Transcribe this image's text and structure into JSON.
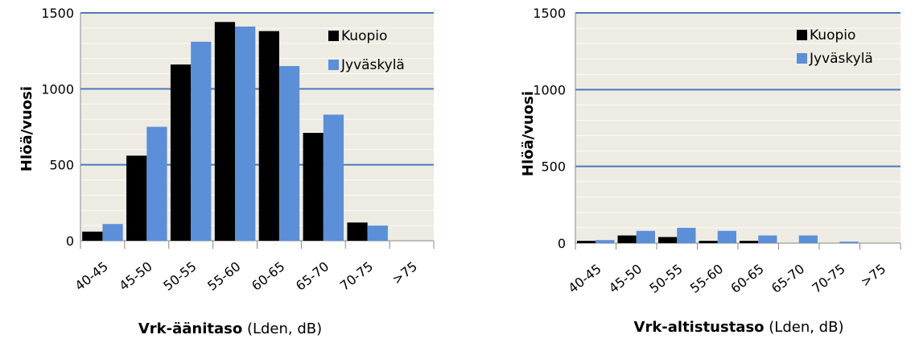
{
  "chart_data": [
    {
      "type": "bar",
      "categories": [
        "40-45",
        "45-50",
        "50-55",
        "55-60",
        "60-65",
        "65-70",
        "70-75",
        ">75"
      ],
      "series": [
        {
          "name": "Kuopio",
          "values": [
            60,
            560,
            1160,
            1440,
            1380,
            710,
            120,
            0
          ]
        },
        {
          "name": "Jyväskylä",
          "values": [
            110,
            750,
            1310,
            1410,
            1150,
            830,
            100,
            0
          ]
        }
      ],
      "ylabel": "Hlöä/vuosi",
      "xlabel_bold": "Vrk-äänitaso",
      "xlabel_rest": " (Lden, dB)",
      "ylim": [
        0,
        1500
      ],
      "yticks": [
        "0",
        "500",
        "1000",
        "1500"
      ],
      "grid": true,
      "legend": "top-right"
    },
    {
      "type": "bar",
      "categories": [
        "40-45",
        "45-50",
        "50-55",
        "55-60",
        "60-65",
        "65-70",
        "70-75",
        ">75"
      ],
      "series": [
        {
          "name": "Kuopio",
          "values": [
            15,
            50,
            40,
            15,
            15,
            0,
            0,
            0
          ]
        },
        {
          "name": "Jyväskylä",
          "values": [
            20,
            80,
            100,
            80,
            50,
            50,
            10,
            0
          ]
        }
      ],
      "ylabel": "Hlöä/vuosi",
      "xlabel_bold": "Vrk-altistustaso",
      "xlabel_rest": " (Lden, dB)",
      "ylim": [
        0,
        1500
      ],
      "yticks": [
        "0",
        "500",
        "1000",
        "1500"
      ],
      "grid": true,
      "legend": "top-right"
    }
  ],
  "colors": {
    "Kuopio": "#000000",
    "Jyväskylä": "#5b8fd8",
    "plot_background": "#eeebe3",
    "gridline": "#4a7ab8"
  }
}
